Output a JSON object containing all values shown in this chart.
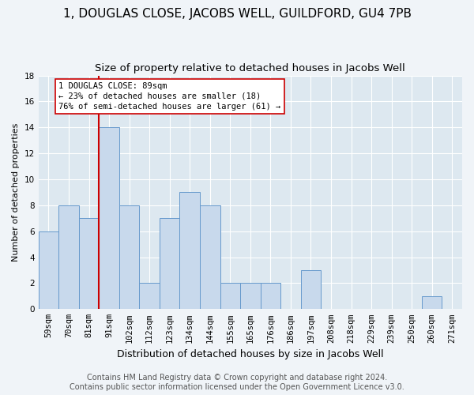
{
  "title": "1, DOUGLAS CLOSE, JACOBS WELL, GUILDFORD, GU4 7PB",
  "subtitle": "Size of property relative to detached houses in Jacobs Well",
  "xlabel": "Distribution of detached houses by size in Jacobs Well",
  "ylabel": "Number of detached properties",
  "categories": [
    "59sqm",
    "70sqm",
    "81sqm",
    "91sqm",
    "102sqm",
    "112sqm",
    "123sqm",
    "134sqm",
    "144sqm",
    "155sqm",
    "165sqm",
    "176sqm",
    "186sqm",
    "197sqm",
    "208sqm",
    "218sqm",
    "229sqm",
    "239sqm",
    "250sqm",
    "260sqm",
    "271sqm"
  ],
  "values": [
    6,
    8,
    7,
    14,
    8,
    2,
    7,
    9,
    8,
    2,
    2,
    2,
    0,
    3,
    0,
    0,
    0,
    0,
    0,
    1,
    0
  ],
  "bar_color": "#c8d9ec",
  "bar_edge_color": "#6699cc",
  "reference_line_color": "#cc0000",
  "annotation_text": "1 DOUGLAS CLOSE: 89sqm\n← 23% of detached houses are smaller (18)\n76% of semi-detached houses are larger (61) →",
  "annotation_box_color": "#ffffff",
  "annotation_box_edge_color": "#cc0000",
  "ylim": [
    0,
    18
  ],
  "yticks": [
    0,
    2,
    4,
    6,
    8,
    10,
    12,
    14,
    16,
    18
  ],
  "background_color": "#dde8f0",
  "fig_background_color": "#f0f4f8",
  "footer_line1": "Contains HM Land Registry data © Crown copyright and database right 2024.",
  "footer_line2": "Contains public sector information licensed under the Open Government Licence v3.0.",
  "title_fontsize": 11,
  "subtitle_fontsize": 9.5,
  "xlabel_fontsize": 9,
  "ylabel_fontsize": 8,
  "tick_fontsize": 7.5,
  "footer_fontsize": 7
}
